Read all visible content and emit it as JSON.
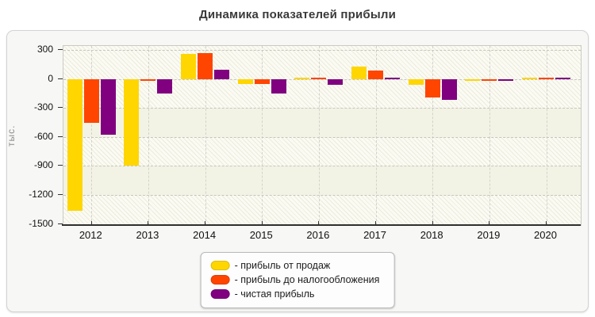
{
  "title": "Динамика показателей прибыли",
  "y_axis": {
    "label": "тыс."
  },
  "legend": {
    "items": [
      {
        "label": "- прибыль от продаж",
        "color": "#FFD600"
      },
      {
        "label": "- прибыль до налогообложения",
        "color": "#FF4500"
      },
      {
        "label": "- чистая прибыль",
        "color": "#800080"
      }
    ]
  },
  "chart_data": {
    "type": "bar",
    "title": "Динамика показателей прибыли",
    "xlabel": "",
    "ylabel": "тыс.",
    "categories": [
      "2012",
      "2013",
      "2014",
      "2015",
      "2016",
      "2017",
      "2018",
      "2019",
      "2020"
    ],
    "series": [
      {
        "name": "прибыль от продаж",
        "color": "#FFD600",
        "values": [
          -1360,
          -900,
          260,
          -50,
          15,
          125,
          -60,
          -10,
          10
        ]
      },
      {
        "name": "прибыль до налогообложения",
        "color": "#FF4500",
        "values": [
          -450,
          -10,
          270,
          -50,
          15,
          90,
          -190,
          -12,
          10
        ]
      },
      {
        "name": "чистая прибыль",
        "color": "#800080",
        "values": [
          -580,
          -155,
          95,
          -150,
          -60,
          5,
          -220,
          -12,
          12
        ]
      }
    ],
    "yticks": [
      300,
      0,
      -300,
      -600,
      -900,
      -1200,
      -1500
    ],
    "ylim": [
      -1510,
      340
    ],
    "grid": "dashed horizontal at yticks, dashed vertical at each year",
    "background_bands": "diagonal hatch on 300..-300, -600..-900, -1200..-1500",
    "legend_position": "bottom-center"
  }
}
